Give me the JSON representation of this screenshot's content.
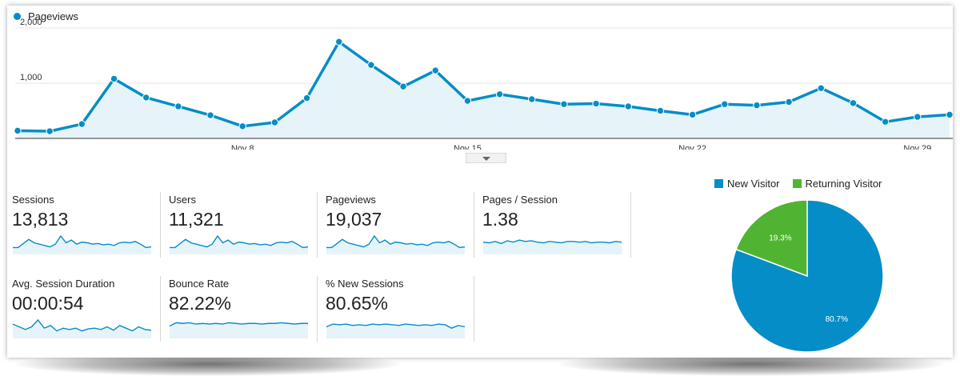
{
  "legend": {
    "series_label": "Pageviews",
    "color": "#058dc7"
  },
  "chart_data": [
    {
      "type": "area",
      "series": [
        {
          "name": "Pageviews",
          "values": [
            140,
            130,
            260,
            1080,
            740,
            580,
            420,
            220,
            290,
            730,
            1750,
            1330,
            940,
            1230,
            680,
            800,
            710,
            620,
            630,
            580,
            500,
            430,
            620,
            600,
            660,
            910,
            640,
            300,
            390,
            430
          ]
        }
      ],
      "ylim": [
        0,
        2000
      ],
      "yticks": [
        "1,000",
        "2,000"
      ],
      "ytick_values": [
        1000,
        2000
      ],
      "xticks": [
        "...",
        "Nov 8",
        "Nov 15",
        "Nov 22",
        "Nov 29"
      ],
      "xtick_indices": [
        0,
        7,
        14,
        21,
        28
      ],
      "grid": true,
      "fill_color": "#e6f3f9"
    },
    {
      "type": "pie",
      "categories": [
        "New Visitor",
        "Returning Visitor"
      ],
      "values": [
        80.7,
        19.3
      ],
      "labels": [
        "80.7%",
        "19.3%"
      ],
      "colors": [
        "#058dc7",
        "#50b432"
      ],
      "legend_placement": "top"
    }
  ],
  "metrics": [
    {
      "label": "Sessions",
      "value": "13,813",
      "spark": [
        0.85,
        0.85,
        0.55,
        0.25,
        0.5,
        0.6,
        0.7,
        0.8,
        0.6,
        0.0,
        0.5,
        0.3,
        0.6,
        0.45,
        0.5,
        0.6,
        0.55,
        0.65,
        0.6,
        0.7,
        0.5,
        0.45,
        0.5,
        0.4,
        0.6,
        0.85,
        0.8
      ]
    },
    {
      "label": "Users",
      "value": "11,321",
      "spark": [
        0.85,
        0.85,
        0.55,
        0.25,
        0.5,
        0.6,
        0.7,
        0.8,
        0.6,
        0.0,
        0.5,
        0.3,
        0.6,
        0.45,
        0.5,
        0.6,
        0.55,
        0.65,
        0.6,
        0.7,
        0.5,
        0.45,
        0.5,
        0.4,
        0.6,
        0.85,
        0.8
      ]
    },
    {
      "label": "Pageviews",
      "value": "19,037",
      "spark": [
        0.85,
        0.85,
        0.55,
        0.25,
        0.5,
        0.6,
        0.7,
        0.8,
        0.6,
        0.0,
        0.5,
        0.3,
        0.6,
        0.45,
        0.5,
        0.6,
        0.55,
        0.65,
        0.6,
        0.7,
        0.5,
        0.45,
        0.5,
        0.4,
        0.6,
        0.85,
        0.8
      ]
    },
    {
      "label": "Pages / Session",
      "value": "1.38",
      "spark": [
        0.45,
        0.5,
        0.4,
        0.55,
        0.35,
        0.45,
        0.3,
        0.4,
        0.35,
        0.45,
        0.5,
        0.4,
        0.45,
        0.5,
        0.4,
        0.4,
        0.45,
        0.4,
        0.5,
        0.45,
        0.45,
        0.5,
        0.4,
        0.45
      ]
    },
    {
      "label": "Avg. Session Duration",
      "value": "00:00:54",
      "spark": [
        0.3,
        0.5,
        0.7,
        0.5,
        0.0,
        0.6,
        0.4,
        0.8,
        0.6,
        0.7,
        0.6,
        0.8,
        0.65,
        0.6,
        0.7,
        0.5,
        0.75,
        0.4,
        0.6,
        0.8,
        0.5,
        0.7,
        0.75
      ]
    },
    {
      "label": "Bounce Rate",
      "value": "82.22%",
      "spark": [
        0.45,
        0.2,
        0.25,
        0.2,
        0.3,
        0.25,
        0.3,
        0.25,
        0.3,
        0.2,
        0.25,
        0.3,
        0.25,
        0.25,
        0.3,
        0.25,
        0.25,
        0.2,
        0.25,
        0.3,
        0.25,
        0.25
      ]
    },
    {
      "label": "% New Sessions",
      "value": "80.65%",
      "spark": [
        0.5,
        0.3,
        0.35,
        0.3,
        0.4,
        0.35,
        0.4,
        0.3,
        0.35,
        0.3,
        0.35,
        0.4,
        0.3,
        0.35,
        0.4,
        0.35,
        0.4,
        0.3,
        0.35,
        0.6,
        0.4,
        0.5
      ]
    }
  ]
}
